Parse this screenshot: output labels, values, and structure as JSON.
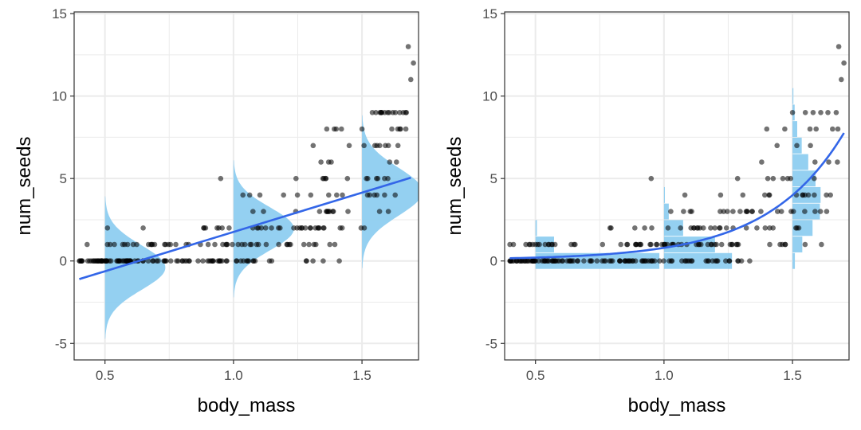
{
  "colors": {
    "point": "#000000",
    "fit_line": "#3366e8",
    "distribution": "#8ecdf0",
    "grid": "#ebebeb",
    "panel_border": "#333333"
  },
  "chart_data": [
    {
      "type": "scatter",
      "panel": "left",
      "xlabel": "body_mass",
      "ylabel": "num_seeds",
      "xlim": [
        0.38,
        1.72
      ],
      "ylim": [
        -6,
        15.1
      ],
      "xticks": [
        0.5,
        1.0,
        1.5
      ],
      "xtick_labels": [
        "0.5",
        "1.0",
        "1.5"
      ],
      "yticks": [
        -5,
        0,
        5,
        10,
        15
      ],
      "ytick_labels": [
        "-5",
        "0",
        "5",
        "10",
        "15"
      ],
      "grid": true,
      "points_seed": 7,
      "points_n": 260,
      "points_mean_model": "linear",
      "fit": {
        "model": "linear",
        "x": [
          0.4,
          1.69
        ],
        "y": [
          -1.1,
          5.05
        ]
      },
      "distributions": [
        {
          "kind": "density",
          "at_x": 0.5,
          "mean": -0.4,
          "sd": 1.35
        },
        {
          "kind": "density",
          "at_x": 1.0,
          "mean": 1.95,
          "sd": 1.3
        },
        {
          "kind": "density",
          "at_x": 1.5,
          "mean": 4.2,
          "sd": 1.45
        }
      ],
      "outliers": [
        {
          "x": 1.68,
          "y": 13
        },
        {
          "x": 1.7,
          "y": 12
        },
        {
          "x": 1.69,
          "y": 11
        },
        {
          "x": 1.54,
          "y": 9
        },
        {
          "x": 1.57,
          "y": 9
        },
        {
          "x": 1.6,
          "y": 9
        },
        {
          "x": 1.63,
          "y": 9
        },
        {
          "x": 1.67,
          "y": 9
        },
        {
          "x": 1.5,
          "y": 8
        },
        {
          "x": 1.4,
          "y": 8
        },
        {
          "x": 1.65,
          "y": 8
        },
        {
          "x": 0.95,
          "y": 5
        },
        {
          "x": 1.37,
          "y": 6
        },
        {
          "x": 1.45,
          "y": 7
        },
        {
          "x": 1.55,
          "y": 7
        }
      ]
    },
    {
      "type": "scatter",
      "panel": "right",
      "xlabel": "body_mass",
      "ylabel": "num_seeds",
      "xlim": [
        0.38,
        1.72
      ],
      "ylim": [
        -6,
        15.1
      ],
      "xticks": [
        0.5,
        1.0,
        1.5
      ],
      "xtick_labels": [
        "0.5",
        "1.0",
        "1.5"
      ],
      "yticks": [
        -5,
        0,
        5,
        10,
        15
      ],
      "ytick_labels": [
        "-5",
        "0",
        "5",
        "10",
        "15"
      ],
      "grid": true,
      "points_seed": 11,
      "points_n": 260,
      "points_mean_model": "exponential",
      "fit": {
        "model": "exponential",
        "x_start": 0.4,
        "x_end": 1.7,
        "a": 0.025,
        "b": 3.37
      },
      "distributions": [
        {
          "kind": "poisson_bars",
          "at_x": 0.5,
          "lambda": 0.15,
          "unit_width": 0.5
        },
        {
          "kind": "poisson_bars",
          "at_x": 1.0,
          "lambda": 0.75,
          "unit_width": 0.5
        },
        {
          "kind": "poisson_bars",
          "at_x": 1.5,
          "lambda": 4.1,
          "unit_width": 0.5
        }
      ],
      "outliers": [
        {
          "x": 1.68,
          "y": 13
        },
        {
          "x": 1.7,
          "y": 12
        },
        {
          "x": 1.69,
          "y": 11
        },
        {
          "x": 1.55,
          "y": 9
        },
        {
          "x": 1.58,
          "y": 9
        },
        {
          "x": 1.61,
          "y": 9
        },
        {
          "x": 1.67,
          "y": 9
        },
        {
          "x": 1.5,
          "y": 9
        },
        {
          "x": 1.47,
          "y": 8
        },
        {
          "x": 1.4,
          "y": 8
        },
        {
          "x": 0.95,
          "y": 5
        },
        {
          "x": 1.38,
          "y": 6
        },
        {
          "x": 1.44,
          "y": 7
        },
        {
          "x": 1.57,
          "y": 7
        }
      ]
    }
  ]
}
